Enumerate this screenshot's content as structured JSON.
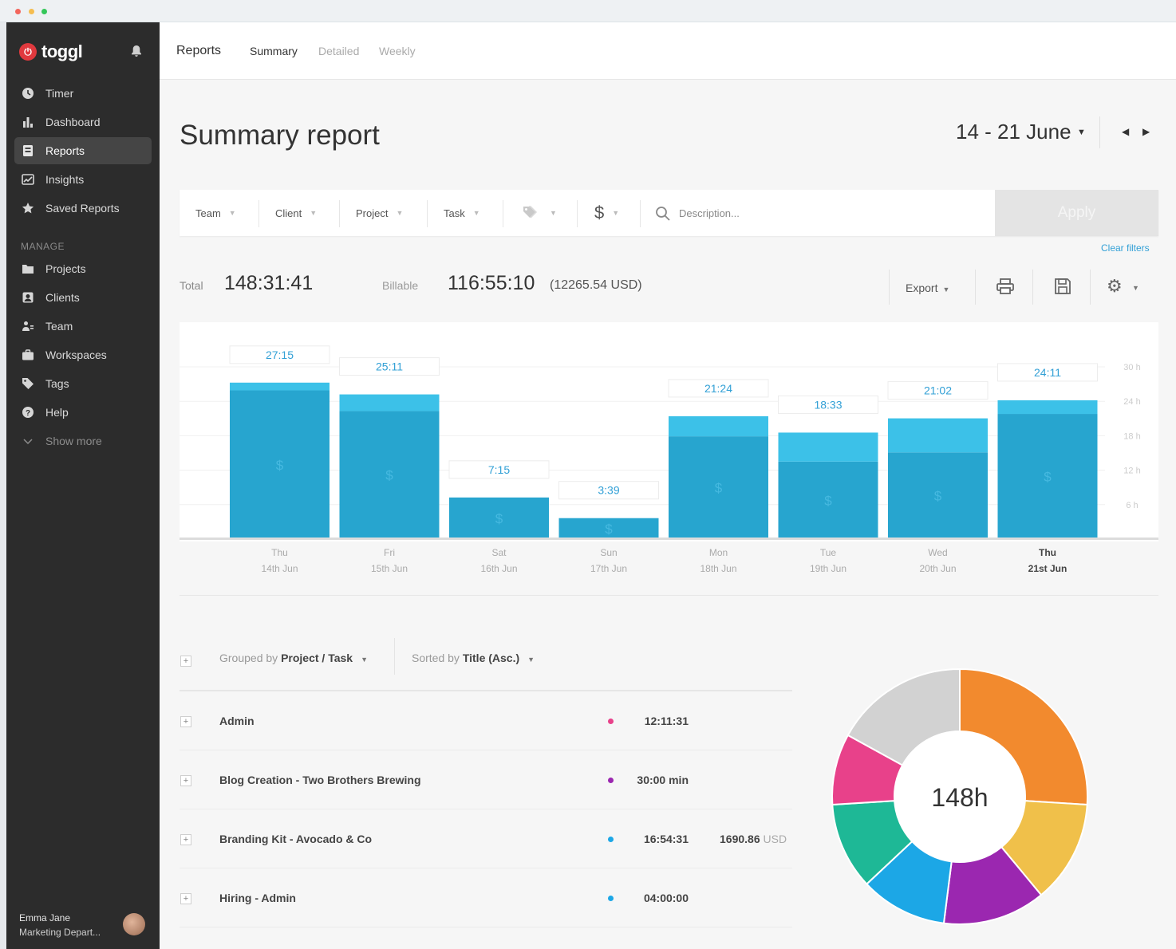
{
  "app": {
    "logo": "toggl"
  },
  "sidebar": {
    "items": [
      {
        "label": "Timer",
        "icon": "clock-icon"
      },
      {
        "label": "Dashboard",
        "icon": "bar-chart-icon"
      },
      {
        "label": "Reports",
        "icon": "report-icon",
        "active": true
      },
      {
        "label": "Insights",
        "icon": "insights-icon"
      },
      {
        "label": "Saved Reports",
        "icon": "star-icon"
      }
    ],
    "manage_label": "MANAGE",
    "manage_items": [
      {
        "label": "Projects",
        "icon": "folder-icon"
      },
      {
        "label": "Clients",
        "icon": "client-icon"
      },
      {
        "label": "Team",
        "icon": "team-icon"
      },
      {
        "label": "Workspaces",
        "icon": "briefcase-icon"
      },
      {
        "label": "Tags",
        "icon": "tag-icon"
      },
      {
        "label": "Help",
        "icon": "help-icon"
      },
      {
        "label": "Show more",
        "icon": "chevron-down-icon"
      }
    ],
    "user": {
      "name": "Emma Jane",
      "department": "Marketing Depart..."
    }
  },
  "topbar": {
    "section": "Reports",
    "tabs": [
      "Summary",
      "Detailed",
      "Weekly"
    ],
    "active_tab": "Summary"
  },
  "header": {
    "title": "Summary report",
    "date_range": "14 - 21 June"
  },
  "filters": {
    "items": [
      "Team",
      "Client",
      "Project",
      "Task"
    ],
    "billable_symbol": "$",
    "description_placeholder": "Description...",
    "apply_label": "Apply",
    "clear_label": "Clear filters"
  },
  "totals": {
    "total_label": "Total",
    "total_value": "148:31:41",
    "billable_label": "Billable",
    "billable_value": "116:55:10",
    "billable_usd": "(12265.54 USD)",
    "export_label": "Export"
  },
  "colors": {
    "billable": "#27a5cf",
    "non_billable": "#3cc1e8",
    "accent": "#32a0d6",
    "brand": "#e0393e"
  },
  "chart_data": {
    "type": "bar",
    "stacked": true,
    "categories": [
      [
        "Thu",
        "14th Jun"
      ],
      [
        "Fri",
        "15th Jun"
      ],
      [
        "Sat",
        "16th Jun"
      ],
      [
        "Sun",
        "17th Jun"
      ],
      [
        "Mon",
        "18th Jun"
      ],
      [
        "Tue",
        "19th Jun"
      ],
      [
        "Wed",
        "20th Jun"
      ],
      [
        "Thu",
        "21st Jun"
      ]
    ],
    "highlight_index": 7,
    "labels": [
      "27:15",
      "25:11",
      "7:15",
      "3:39",
      "21:24",
      "18:33",
      "21:02",
      "24:11"
    ],
    "series": [
      {
        "values": [
          25.9,
          22.3,
          7.25,
          3.65,
          17.9,
          13.5,
          15.1,
          21.8
        ]
      },
      {
        "values": [
          1.35,
          2.9,
          0,
          0,
          3.5,
          5.05,
          5.93,
          2.38
        ]
      }
    ],
    "billable_marker": "$",
    "y_ticks": [
      "6 h",
      "12 h",
      "18 h",
      "24 h",
      "30 h"
    ],
    "y_tick_values": [
      6,
      12,
      18,
      24,
      30
    ],
    "ylim": [
      0,
      30
    ],
    "grid": true
  },
  "list": {
    "grouped_prefix": "Grouped by",
    "grouped_value": "Project / Task",
    "sorted_prefix": "Sorted by",
    "sorted_value": "Title (Asc.)",
    "rows": [
      {
        "title": "Admin",
        "dot_color": "#e8418a",
        "time": "12:11:31",
        "amount": "",
        "currency": ""
      },
      {
        "title": "Blog Creation - Two Brothers Brewing",
        "dot_color": "#9b27b0",
        "time": "30:00 min",
        "amount": "",
        "currency": ""
      },
      {
        "title": "Branding Kit - Avocado & Co",
        "dot_color": "#1ca7e6",
        "time": "16:54:31",
        "amount": "1690.86",
        "currency": "USD"
      },
      {
        "title": "Hiring - Admin",
        "dot_color": "#1ca7e6",
        "time": "04:00:00",
        "amount": "",
        "currency": ""
      }
    ]
  },
  "donut": {
    "center_label": "148h",
    "slices": [
      {
        "value": 26,
        "color": "#f28a2e"
      },
      {
        "value": 13,
        "color": "#f0c04a"
      },
      {
        "value": 13,
        "color": "#9b27b0"
      },
      {
        "value": 11,
        "color": "#1ca7e6"
      },
      {
        "value": 11,
        "color": "#1eb896"
      },
      {
        "value": 9,
        "color": "#e8418a"
      },
      {
        "value": 17,
        "color": "#d2d2d2"
      }
    ]
  }
}
